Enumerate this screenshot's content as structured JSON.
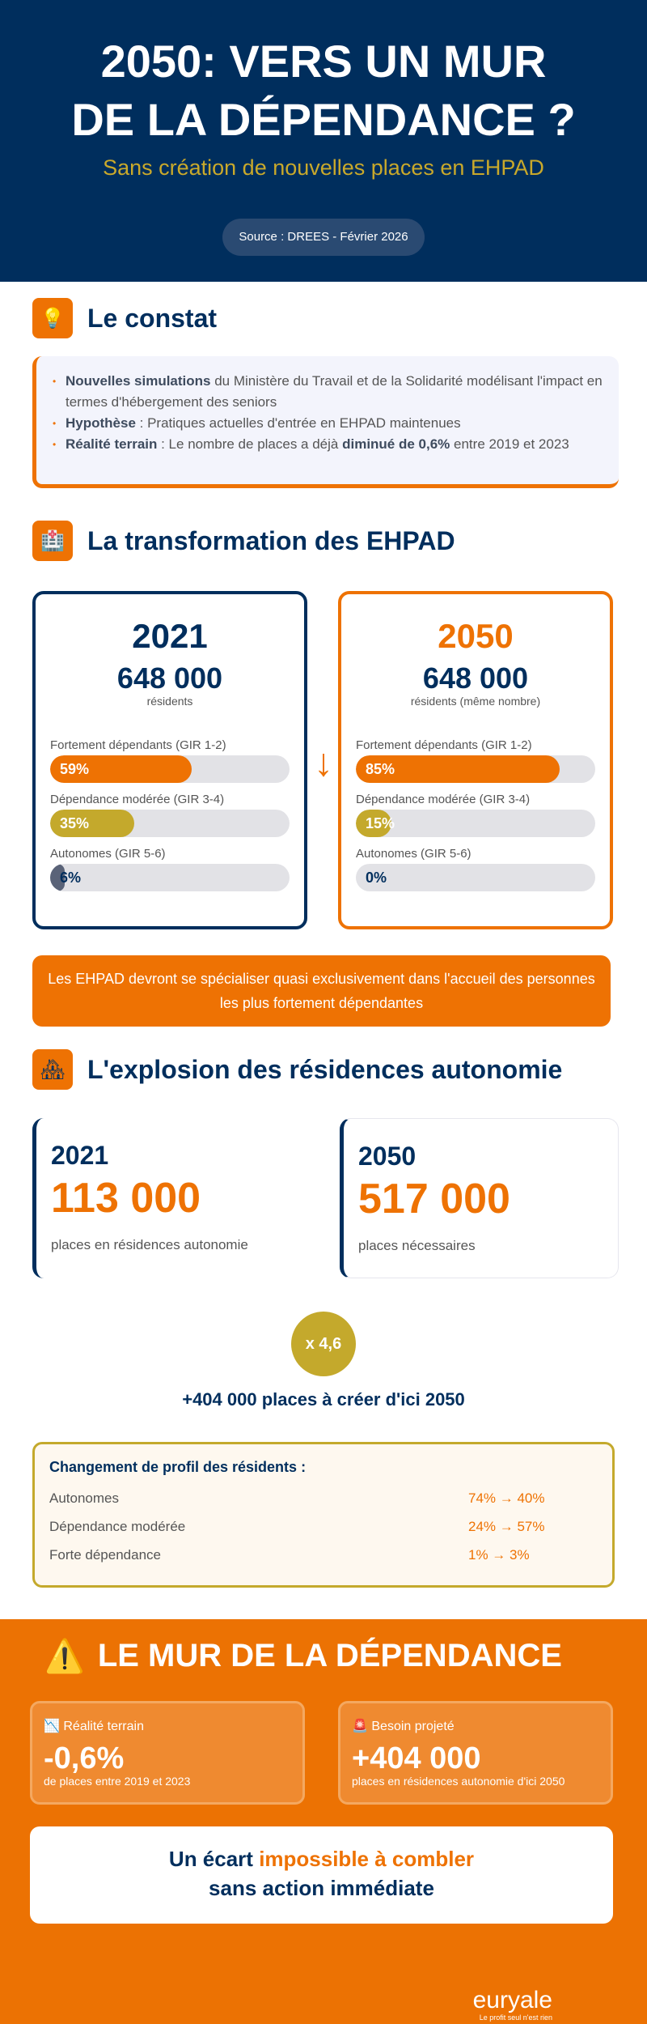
{
  "header": {
    "title_line1": "2050: VERS UN MUR",
    "title_line2": "DE LA DÉPENDANCE ?",
    "subtitle": "Sans création de nouvelles places en EHPAD",
    "source": "Source : DREES - Février 2026"
  },
  "constat": {
    "title": "Le constat",
    "icon": "lightbulb-icon",
    "items": [
      {
        "bold": "Nouvelles simulations",
        "text": " du Ministère du Travail et de la Solidarité modélisant l'impact en termes d'hébergement des seniors"
      },
      {
        "bold": "Hypothèse",
        "text": " : Pratiques actuelles d'entrée en EHPAD maintenues"
      },
      {
        "bold": "Réalité terrain",
        "text": " : Le nombre de places a déjà ",
        "bold2": "diminué de 0,6%",
        "text2": " entre 2019 et 2023"
      }
    ]
  },
  "transformation": {
    "title": "La transformation des EHPAD",
    "icon": "hospital-icon",
    "cards": [
      {
        "year": "2021",
        "number": "648 000",
        "sub": "résidents",
        "bars": [
          {
            "label": "Fortement dépendants (GIR 1-2)",
            "value": 59,
            "text": "59%"
          },
          {
            "label": "Dépendance modérée (GIR 3-4)",
            "value": 35,
            "text": "35%"
          },
          {
            "label": "Autonomes (GIR 5-6)",
            "value": 6,
            "text": "6%"
          }
        ]
      },
      {
        "year": "2050",
        "number": "648 000",
        "sub": "résidents (même nombre)",
        "bars": [
          {
            "label": "Fortement dépendants (GIR 1-2)",
            "value": 85,
            "text": "85%"
          },
          {
            "label": "Dépendance modérée (GIR 3-4)",
            "value": 15,
            "text": "15%"
          },
          {
            "label": "Autonomes (GIR 5-6)",
            "value": 0,
            "text": "0%"
          }
        ]
      }
    ],
    "banner": "Les EHPAD devront se spécialiser quasi exclusivement dans l'accueil des personnes les plus fortement dépendantes"
  },
  "residences": {
    "title": "L'explosion des résidences autonomie",
    "icon": "houses-icon",
    "cards": [
      {
        "year": "2021",
        "number": "113 000",
        "sub": "places en résidences autonomie"
      },
      {
        "year": "2050",
        "number": "517 000",
        "sub": "places nécessaires"
      }
    ],
    "multiplier": "x 4,6",
    "plus": "+404 000 places à créer d'ici 2050",
    "profile": {
      "title": "Changement de profil des résidents :",
      "rows": [
        {
          "label": "Autonomes",
          "value": "74% → 40%"
        },
        {
          "label": "Dépendance modérée",
          "value": "24% → 57%"
        },
        {
          "label": "Forte dépendance",
          "value": "1% → 3%"
        }
      ]
    }
  },
  "mur": {
    "title": "LE MUR DE LA DÉPENDANCE",
    "cards": [
      {
        "icon": "chart-down-icon",
        "label": "Réalité terrain",
        "value": "-0,6%",
        "sub": "de places entre 2019 et 2023"
      },
      {
        "icon": "siren-icon",
        "label": "Besoin projeté",
        "value": "+404 000",
        "sub": "places en résidences autonomie d'ici 2050"
      }
    ],
    "conclusion": {
      "part1": "Un écart ",
      "highlight": "impossible à combler",
      "line2": "sans action immédiate"
    }
  },
  "logo": {
    "name": "euryale",
    "tagline": "Le profit seul n'est rien"
  },
  "colors": {
    "navy": "#002e5d",
    "orange": "#ee7203",
    "gold": "#c4a92c"
  }
}
